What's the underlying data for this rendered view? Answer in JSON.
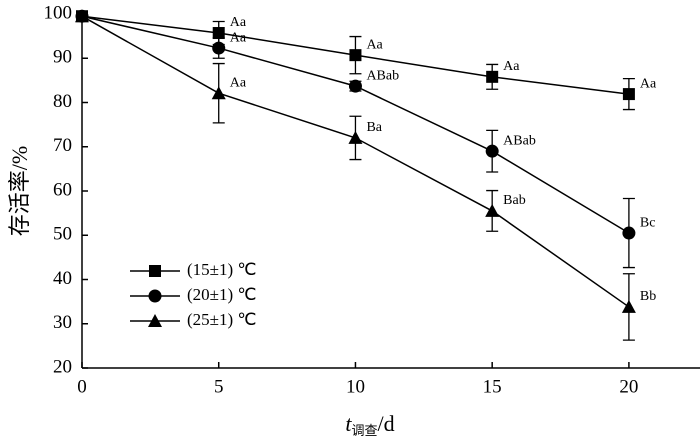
{
  "chart_data": {
    "type": "line",
    "ylabel": "存活率/%",
    "xlabel": {
      "symbol": "t",
      "subscript": "调查",
      "unit": "/d"
    },
    "x": [
      0,
      5,
      10,
      15,
      20
    ],
    "xlim": [
      0,
      22.6
    ],
    "xticks": [
      0,
      5,
      10,
      15,
      20
    ],
    "ylim": [
      20,
      100
    ],
    "yticks": [
      20,
      30,
      40,
      50,
      60,
      70,
      80,
      90,
      100
    ],
    "legend": "left",
    "series": [
      {
        "name": "(15±1) ℃",
        "marker": "square",
        "color": "#000000",
        "values": [
          99.5,
          95.7,
          90.7,
          85.8,
          81.9
        ],
        "errors": [
          0,
          2.6,
          4.2,
          2.8,
          3.5
        ],
        "point_labels": [
          null,
          "Aa",
          "Aa",
          "Aa",
          "Aa"
        ]
      },
      {
        "name": "(20±1) ℃",
        "marker": "circle",
        "color": "#000000",
        "values": [
          99.5,
          92.3,
          83.7,
          69,
          50.5
        ],
        "errors": [
          0,
          2.3,
          1.1,
          4.7,
          7.8
        ],
        "point_labels": [
          null,
          "Aa",
          "ABab",
          "ABab",
          "Bc"
        ]
      },
      {
        "name": "(25±1) ℃",
        "marker": "triangle",
        "color": "#000000",
        "values": [
          99.5,
          82.1,
          72,
          55.5,
          33.8
        ],
        "errors": [
          0,
          6.7,
          4.9,
          4.6,
          7.5
        ],
        "point_labels": [
          null,
          "Aa",
          "Ba",
          "Bab",
          "Bb"
        ]
      }
    ]
  }
}
